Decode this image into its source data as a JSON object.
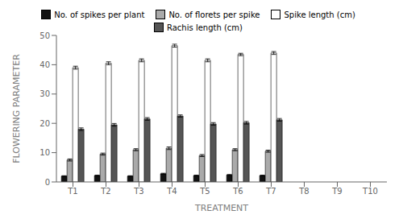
{
  "chart_data": {
    "type": "bar",
    "categories": [
      "T1",
      "T2",
      "T3",
      "T4",
      "T5",
      "T6",
      "T7",
      "T8",
      "T9",
      "T10"
    ],
    "series": [
      {
        "name": "No. of spikes per plant",
        "color": "#111111",
        "values": [
          2.0,
          2.2,
          2.0,
          2.8,
          2.2,
          2.4,
          2.2,
          0.0,
          0.0,
          0.0
        ],
        "errors": [
          0.12,
          0.12,
          0.12,
          0.18,
          0.12,
          0.14,
          0.12,
          0.0,
          0.0,
          0.0
        ]
      },
      {
        "name": "No. of florets per spike",
        "color": "#aaaaaa",
        "values": [
          7.5,
          9.5,
          11.0,
          11.5,
          9.0,
          11.0,
          10.5,
          0.0,
          0.0,
          0.0
        ],
        "errors": [
          0.35,
          0.35,
          0.35,
          0.45,
          0.35,
          0.35,
          0.35,
          0.0,
          0.0,
          0.0
        ]
      },
      {
        "name": "Spike length (cm)",
        "color": "#ffffff",
        "values": [
          39.0,
          40.5,
          41.5,
          46.5,
          41.5,
          43.5,
          44.0,
          0.0,
          0.0,
          0.0
        ],
        "errors": [
          0.5,
          0.5,
          0.5,
          0.5,
          0.5,
          0.4,
          0.5,
          0.0,
          0.0,
          0.0
        ]
      },
      {
        "name": "Rachis length (cm)",
        "color": "#555555",
        "values": [
          18.0,
          19.5,
          21.5,
          22.5,
          19.8,
          20.2,
          21.2,
          0.0,
          0.0,
          0.0
        ],
        "errors": [
          0.45,
          0.45,
          0.45,
          0.38,
          0.45,
          0.45,
          0.45,
          0.0,
          0.0,
          0.0
        ]
      }
    ],
    "ylabel": "FLOWERING PARAMETER",
    "xlabel": "TREATMENT",
    "ylim": [
      0,
      50
    ],
    "yticks": [
      0,
      10,
      20,
      30,
      40,
      50
    ],
    "grid": false,
    "legend": "top"
  }
}
